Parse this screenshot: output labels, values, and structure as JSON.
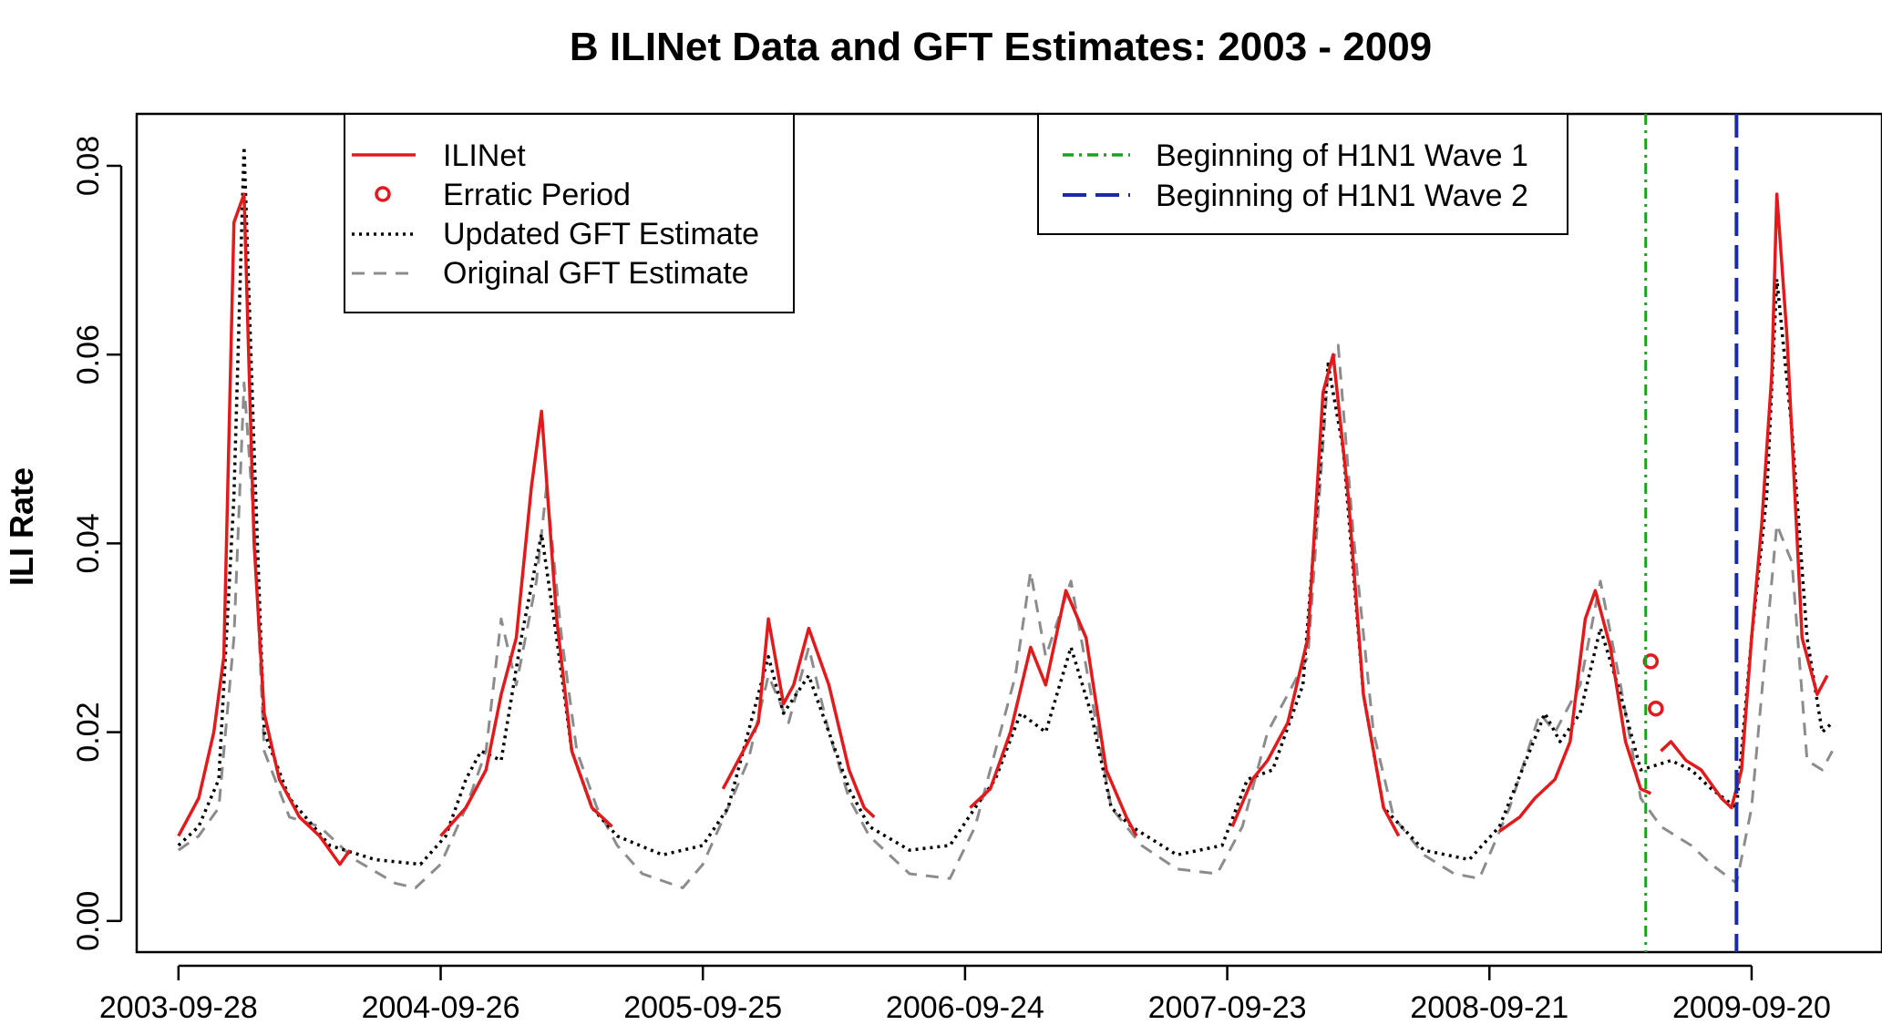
{
  "chart_data": {
    "type": "line",
    "title": "B  ILINet Data and GFT Estimates: 2003 - 2009",
    "xlabel": "",
    "ylabel": "ILI Rate",
    "x_range": [
      "2003-08-01",
      "2010-03-20"
    ],
    "ylim": [
      -0.0033,
      0.0855
    ],
    "x_ticks": [
      {
        "date": "2003-09-28",
        "label": "2003-09-28"
      },
      {
        "date": "2004-09-26",
        "label": "2004-09-26"
      },
      {
        "date": "2005-09-25",
        "label": "2005-09-25"
      },
      {
        "date": "2006-09-24",
        "label": "2006-09-24"
      },
      {
        "date": "2007-09-23",
        "label": "2007-09-23"
      },
      {
        "date": "2008-09-21",
        "label": "2008-09-21"
      },
      {
        "date": "2009-09-20",
        "label": "2009-09-20"
      }
    ],
    "y_ticks": [
      {
        "value": 0.0,
        "label": "0.00"
      },
      {
        "value": 0.02,
        "label": "0.02"
      },
      {
        "value": 0.04,
        "label": "0.04"
      },
      {
        "value": 0.06,
        "label": "0.06"
      },
      {
        "value": 0.08,
        "label": "0.08"
      }
    ],
    "legend_left": {
      "placement": "top-left",
      "entries": [
        "ILINet",
        "Erratic Period",
        "Updated GFT Estimate",
        "Original GFT Estimate"
      ]
    },
    "legend_right": {
      "placement": "top-right",
      "entries": [
        "Beginning of H1N1 Wave 1",
        "Beginning of H1N1 Wave 2"
      ]
    },
    "colors": {
      "ilinet": "#e31a1c",
      "updated_gft": "#000000",
      "original_gft": "#8c8c8c",
      "wave1": "#1aa31a",
      "wave2": "#1a2aa8"
    },
    "vlines": [
      {
        "name": "Beginning of H1N1 Wave 1",
        "date": "2009-04-26",
        "style": "dotdash",
        "color": "#1aa31a"
      },
      {
        "name": "Beginning of H1N1 Wave 2",
        "date": "2009-08-30",
        "style": "longdash",
        "color": "#1a2aa8"
      }
    ],
    "series": [
      {
        "name": "ILINet",
        "style": "solid",
        "color": "#e31a1c",
        "segments": [
          [
            [
              "2003-09-28",
              0.009
            ],
            [
              "2003-10-26",
              0.013
            ],
            [
              "2003-11-16",
              0.02
            ],
            [
              "2003-11-30",
              0.028
            ],
            [
              "2003-12-14",
              0.074
            ],
            [
              "2003-12-28",
              0.077
            ],
            [
              "2004-01-11",
              0.04
            ],
            [
              "2004-01-25",
              0.022
            ],
            [
              "2004-02-15",
              0.015
            ],
            [
              "2004-03-14",
              0.011
            ],
            [
              "2004-04-11",
              0.009
            ],
            [
              "2004-05-09",
              0.006
            ],
            [
              "2004-05-23",
              0.0075
            ]
          ],
          [
            [
              "2004-09-26",
              0.009
            ],
            [
              "2004-10-31",
              0.012
            ],
            [
              "2004-11-28",
              0.016
            ],
            [
              "2004-12-19",
              0.024
            ],
            [
              "2005-01-09",
              0.03
            ],
            [
              "2005-01-30",
              0.046
            ],
            [
              "2005-02-13",
              0.054
            ],
            [
              "2005-03-06",
              0.032
            ],
            [
              "2005-03-27",
              0.018
            ],
            [
              "2005-04-24",
              0.012
            ],
            [
              "2005-05-22",
              0.01
            ]
          ],
          [
            [
              "2005-10-23",
              0.014
            ],
            [
              "2005-11-20",
              0.018
            ],
            [
              "2005-12-11",
              0.021
            ],
            [
              "2005-12-25",
              0.032
            ],
            [
              "2006-01-15",
              0.023
            ],
            [
              "2006-01-29",
              0.025
            ],
            [
              "2006-02-19",
              0.031
            ],
            [
              "2006-03-19",
              0.025
            ],
            [
              "2006-04-16",
              0.016
            ],
            [
              "2006-05-07",
              0.012
            ],
            [
              "2006-05-21",
              0.011
            ]
          ],
          [
            [
              "2006-10-01",
              0.012
            ],
            [
              "2006-10-29",
              0.014
            ],
            [
              "2006-11-26",
              0.02
            ],
            [
              "2006-12-24",
              0.029
            ],
            [
              "2007-01-14",
              0.025
            ],
            [
              "2007-02-11",
              0.035
            ],
            [
              "2007-03-11",
              0.03
            ],
            [
              "2007-04-08",
              0.016
            ],
            [
              "2007-05-06",
              0.011
            ],
            [
              "2007-05-20",
              0.009
            ]
          ],
          [
            [
              "2007-09-30",
              0.01
            ],
            [
              "2007-10-28",
              0.015
            ],
            [
              "2007-11-18",
              0.017
            ],
            [
              "2007-12-16",
              0.021
            ],
            [
              "2008-01-13",
              0.03
            ],
            [
              "2008-02-03",
              0.056
            ],
            [
              "2008-02-17",
              0.06
            ],
            [
              "2008-03-09",
              0.045
            ],
            [
              "2008-03-30",
              0.024
            ],
            [
              "2008-04-27",
              0.012
            ],
            [
              "2008-05-18",
              0.009
            ]
          ],
          [
            [
              "2008-10-05",
              0.0095
            ],
            [
              "2008-11-02",
              0.011
            ],
            [
              "2008-11-23",
              0.013
            ],
            [
              "2008-12-21",
              0.015
            ],
            [
              "2009-01-11",
              0.019
            ],
            [
              "2009-02-01",
              0.032
            ],
            [
              "2009-02-15",
              0.035
            ],
            [
              "2009-03-08",
              0.029
            ],
            [
              "2009-03-29",
              0.019
            ],
            [
              "2009-04-19",
              0.014
            ],
            [
              "2009-05-03",
              0.0135
            ]
          ],
          [
            [
              "2009-05-17",
              0.018
            ],
            [
              "2009-05-31",
              0.019
            ],
            [
              "2009-06-21",
              0.017
            ],
            [
              "2009-07-12",
              0.016
            ],
            [
              "2009-08-09",
              0.013
            ],
            [
              "2009-08-23",
              0.012
            ],
            [
              "2009-09-06",
              0.016
            ],
            [
              "2009-09-20",
              0.03
            ],
            [
              "2009-10-04",
              0.042
            ],
            [
              "2009-10-18",
              0.058
            ],
            [
              "2009-10-25",
              0.077
            ],
            [
              "2009-11-08",
              0.062
            ],
            [
              "2009-11-29",
              0.03
            ],
            [
              "2009-12-20",
              0.024
            ],
            [
              "2010-01-03",
              0.026
            ]
          ]
        ]
      },
      {
        "name": "Erratic Period",
        "style": "marker",
        "color": "#e31a1c",
        "points": [
          [
            "2009-05-03",
            0.0275
          ],
          [
            "2009-05-10",
            0.0225
          ]
        ]
      },
      {
        "name": "Updated GFT Estimate",
        "style": "dotted",
        "color": "#000000",
        "points": [
          [
            "2003-09-28",
            0.008
          ],
          [
            "2003-10-26",
            0.01
          ],
          [
            "2003-11-23",
            0.015
          ],
          [
            "2003-12-14",
            0.045
          ],
          [
            "2003-12-28",
            0.082
          ],
          [
            "2004-01-11",
            0.05
          ],
          [
            "2004-01-25",
            0.02
          ],
          [
            "2004-02-29",
            0.013
          ],
          [
            "2004-04-25",
            0.008
          ],
          [
            "2004-06-27",
            0.0065
          ],
          [
            "2004-08-29",
            0.006
          ],
          [
            "2004-10-03",
            0.009
          ],
          [
            "2004-10-31",
            0.015
          ],
          [
            "2004-11-21",
            0.018
          ],
          [
            "2004-12-19",
            0.017
          ],
          [
            "2005-01-16",
            0.03
          ],
          [
            "2005-02-13",
            0.041
          ],
          [
            "2005-03-06",
            0.03
          ],
          [
            "2005-03-27",
            0.018
          ],
          [
            "2005-04-24",
            0.012
          ],
          [
            "2005-05-29",
            0.009
          ],
          [
            "2005-07-31",
            0.007
          ],
          [
            "2005-09-25",
            0.008
          ],
          [
            "2005-10-30",
            0.012
          ],
          [
            "2005-11-20",
            0.018
          ],
          [
            "2005-12-25",
            0.028
          ],
          [
            "2006-01-15",
            0.022
          ],
          [
            "2006-02-19",
            0.026
          ],
          [
            "2006-03-19",
            0.02
          ],
          [
            "2006-04-16",
            0.014
          ],
          [
            "2006-05-14",
            0.01
          ],
          [
            "2006-07-09",
            0.0075
          ],
          [
            "2006-09-03",
            0.008
          ],
          [
            "2006-10-08",
            0.012
          ],
          [
            "2006-11-05",
            0.015
          ],
          [
            "2006-12-10",
            0.022
          ],
          [
            "2007-01-14",
            0.02
          ],
          [
            "2007-02-18",
            0.029
          ],
          [
            "2007-03-18",
            0.022
          ],
          [
            "2007-04-15",
            0.012
          ],
          [
            "2007-05-13",
            0.01
          ],
          [
            "2007-07-15",
            0.007
          ],
          [
            "2007-09-16",
            0.008
          ],
          [
            "2007-10-21",
            0.015
          ],
          [
            "2007-11-25",
            0.016
          ],
          [
            "2008-01-06",
            0.025
          ],
          [
            "2008-02-10",
            0.059
          ],
          [
            "2008-03-02",
            0.05
          ],
          [
            "2008-03-30",
            0.024
          ],
          [
            "2008-04-27",
            0.012
          ],
          [
            "2008-06-22",
            0.0075
          ],
          [
            "2008-08-24",
            0.0065
          ],
          [
            "2008-10-05",
            0.01
          ],
          [
            "2008-11-16",
            0.018
          ],
          [
            "2008-12-07",
            0.022
          ],
          [
            "2008-12-28",
            0.019
          ],
          [
            "2009-01-25",
            0.022
          ],
          [
            "2009-02-22",
            0.031
          ],
          [
            "2009-03-22",
            0.024
          ],
          [
            "2009-04-19",
            0.016
          ],
          [
            "2009-05-10",
            0.0165
          ],
          [
            "2009-05-31",
            0.017
          ],
          [
            "2009-06-28",
            0.016
          ],
          [
            "2009-07-26",
            0.014
          ],
          [
            "2009-08-30",
            0.012
          ],
          [
            "2009-09-20",
            0.03
          ],
          [
            "2009-10-11",
            0.045
          ],
          [
            "2009-10-25",
            0.068
          ],
          [
            "2009-11-15",
            0.052
          ],
          [
            "2009-12-06",
            0.03
          ],
          [
            "2009-12-27",
            0.02
          ],
          [
            "2010-01-10",
            0.021
          ]
        ]
      },
      {
        "name": "Original GFT Estimate",
        "style": "dashed",
        "color": "#8c8c8c",
        "points": [
          [
            "2003-09-28",
            0.0075
          ],
          [
            "2003-10-26",
            0.009
          ],
          [
            "2003-11-23",
            0.012
          ],
          [
            "2003-12-14",
            0.03
          ],
          [
            "2003-12-28",
            0.057
          ],
          [
            "2004-01-11",
            0.042
          ],
          [
            "2004-01-25",
            0.018
          ],
          [
            "2004-02-29",
            0.011
          ],
          [
            "2004-04-11",
            0.01
          ],
          [
            "2004-05-30",
            0.0065
          ],
          [
            "2004-07-25",
            0.004
          ],
          [
            "2004-08-22",
            0.0035
          ],
          [
            "2004-09-26",
            0.006
          ],
          [
            "2004-10-31",
            0.012
          ],
          [
            "2004-11-28",
            0.018
          ],
          [
            "2004-12-19",
            0.032
          ],
          [
            "2005-01-09",
            0.025
          ],
          [
            "2005-02-06",
            0.036
          ],
          [
            "2005-02-20",
            0.046
          ],
          [
            "2005-03-13",
            0.03
          ],
          [
            "2005-04-03",
            0.018
          ],
          [
            "2005-05-01",
            0.012
          ],
          [
            "2005-05-29",
            0.008
          ],
          [
            "2005-07-03",
            0.005
          ],
          [
            "2005-08-28",
            0.0035
          ],
          [
            "2005-09-25",
            0.006
          ],
          [
            "2005-10-30",
            0.012
          ],
          [
            "2005-11-27",
            0.017
          ],
          [
            "2005-12-25",
            0.026
          ],
          [
            "2006-01-22",
            0.021
          ],
          [
            "2006-02-19",
            0.029
          ],
          [
            "2006-03-19",
            0.02
          ],
          [
            "2006-04-16",
            0.013
          ],
          [
            "2006-05-14",
            0.009
          ],
          [
            "2006-07-09",
            0.005
          ],
          [
            "2006-09-03",
            0.0045
          ],
          [
            "2006-10-08",
            0.01
          ],
          [
            "2006-11-05",
            0.018
          ],
          [
            "2006-12-03",
            0.026
          ],
          [
            "2006-12-24",
            0.037
          ],
          [
            "2007-01-14",
            0.028
          ],
          [
            "2007-02-18",
            0.036
          ],
          [
            "2007-03-18",
            0.024
          ],
          [
            "2007-04-15",
            0.012
          ],
          [
            "2007-05-27",
            0.008
          ],
          [
            "2007-07-15",
            0.0055
          ],
          [
            "2007-09-09",
            0.005
          ],
          [
            "2007-10-14",
            0.01
          ],
          [
            "2007-11-18",
            0.02
          ],
          [
            "2007-12-16",
            0.024
          ],
          [
            "2008-01-13",
            0.028
          ],
          [
            "2008-02-10",
            0.058
          ],
          [
            "2008-02-24",
            0.061
          ],
          [
            "2008-03-16",
            0.041
          ],
          [
            "2008-04-13",
            0.02
          ],
          [
            "2008-05-11",
            0.011
          ],
          [
            "2008-06-22",
            0.007
          ],
          [
            "2008-08-03",
            0.005
          ],
          [
            "2008-09-07",
            0.0045
          ],
          [
            "2008-10-19",
            0.012
          ],
          [
            "2008-11-30",
            0.022
          ],
          [
            "2008-12-21",
            0.02
          ],
          [
            "2009-01-25",
            0.025
          ],
          [
            "2009-02-22",
            0.036
          ],
          [
            "2009-03-22",
            0.025
          ],
          [
            "2009-04-19",
            0.013
          ],
          [
            "2009-05-17",
            0.01
          ],
          [
            "2009-06-28",
            0.008
          ],
          [
            "2009-07-26",
            0.006
          ],
          [
            "2009-08-30",
            0.004
          ],
          [
            "2009-09-20",
            0.012
          ],
          [
            "2009-10-11",
            0.03
          ],
          [
            "2009-10-25",
            0.042
          ],
          [
            "2009-11-15",
            0.038
          ],
          [
            "2009-12-06",
            0.017
          ],
          [
            "2009-12-27",
            0.016
          ],
          [
            "2010-01-10",
            0.018
          ]
        ]
      }
    ]
  }
}
